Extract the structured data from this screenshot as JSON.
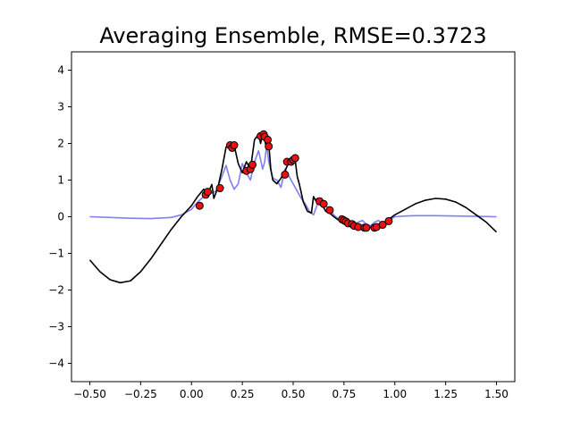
{
  "chart_data": {
    "type": "line",
    "title": "Averaging Ensemble, RMSE=0.3723",
    "xlabel": "",
    "ylabel": "",
    "xlim": [
      -0.59,
      1.59
    ],
    "ylim": [
      -4.5,
      4.5
    ],
    "x_ticks": [
      -0.5,
      -0.25,
      0.0,
      0.25,
      0.5,
      0.75,
      1.0,
      1.25,
      1.5
    ],
    "x_tick_labels": [
      "−0.50",
      "−0.25",
      "0.00",
      "0.25",
      "0.50",
      "0.75",
      "1.00",
      "1.25",
      "1.50"
    ],
    "y_ticks": [
      -4,
      -3,
      -2,
      -1,
      0,
      1,
      2,
      3,
      4
    ],
    "y_tick_labels": [
      "−4",
      "−3",
      "−2",
      "−1",
      "0",
      "1",
      "2",
      "3",
      "4"
    ],
    "grid": false,
    "legend": "none",
    "series": [
      {
        "role": "true-function",
        "color": "#8080f0",
        "style": "line",
        "x": [
          -0.5,
          -0.4,
          -0.3,
          -0.2,
          -0.1,
          -0.05,
          0.0,
          0.03,
          0.06,
          0.09,
          0.12,
          0.15,
          0.17,
          0.19,
          0.21,
          0.23,
          0.25,
          0.27,
          0.29,
          0.31,
          0.33,
          0.35,
          0.36,
          0.37,
          0.38,
          0.4,
          0.42,
          0.44,
          0.46,
          0.48,
          0.5,
          0.52,
          0.54,
          0.56,
          0.58,
          0.6,
          0.62,
          0.64,
          0.66,
          0.68,
          0.7,
          0.72,
          0.74,
          0.76,
          0.78,
          0.8,
          0.82,
          0.84,
          0.86,
          0.88,
          0.9,
          0.92,
          0.94,
          0.96,
          0.98,
          1.0,
          1.05,
          1.1,
          1.2,
          1.3,
          1.4,
          1.5
        ],
        "y": [
          0.0,
          -0.02,
          -0.04,
          -0.05,
          -0.02,
          0.05,
          0.2,
          0.4,
          0.55,
          0.62,
          0.7,
          1.1,
          1.4,
          1.0,
          0.75,
          0.9,
          1.45,
          1.2,
          1.0,
          1.5,
          1.8,
          1.3,
          1.5,
          1.95,
          1.5,
          1.05,
          1.0,
          0.8,
          1.3,
          1.1,
          0.9,
          0.7,
          0.5,
          0.35,
          0.15,
          0.05,
          0.35,
          0.5,
          0.3,
          0.2,
          0.05,
          -0.05,
          -0.1,
          -0.12,
          -0.14,
          -0.2,
          -0.15,
          -0.1,
          -0.2,
          -0.25,
          -0.15,
          -0.1,
          -0.2,
          -0.12,
          -0.08,
          0.0,
          0.02,
          0.03,
          0.03,
          0.02,
          0.01,
          0.0
        ]
      },
      {
        "role": "ensemble-prediction",
        "color": "#000000",
        "style": "line",
        "x": [
          -0.5,
          -0.45,
          -0.4,
          -0.35,
          -0.3,
          -0.25,
          -0.2,
          -0.15,
          -0.1,
          -0.05,
          0.0,
          0.03,
          0.06,
          0.08,
          0.1,
          0.11,
          0.12,
          0.13,
          0.15,
          0.17,
          0.19,
          0.21,
          0.23,
          0.25,
          0.27,
          0.29,
          0.31,
          0.33,
          0.34,
          0.35,
          0.36,
          0.37,
          0.38,
          0.39,
          0.4,
          0.42,
          0.44,
          0.46,
          0.48,
          0.5,
          0.51,
          0.52,
          0.53,
          0.55,
          0.57,
          0.59,
          0.6,
          0.61,
          0.62,
          0.64,
          0.66,
          0.68,
          0.7,
          0.72,
          0.74,
          0.76,
          0.78,
          0.8,
          0.82,
          0.85,
          0.88,
          0.91,
          0.95,
          1.0,
          1.05,
          1.1,
          1.15,
          1.2,
          1.25,
          1.3,
          1.35,
          1.4,
          1.45,
          1.5
        ],
        "y": [
          -1.18,
          -1.5,
          -1.72,
          -1.8,
          -1.75,
          -1.5,
          -1.15,
          -0.75,
          -0.35,
          0.0,
          0.3,
          0.55,
          0.75,
          0.62,
          0.88,
          0.5,
          0.65,
          0.8,
          1.3,
          1.9,
          2.0,
          1.95,
          1.45,
          1.2,
          1.5,
          1.3,
          2.1,
          2.25,
          2.0,
          2.3,
          2.1,
          1.85,
          2.0,
          1.3,
          1.0,
          0.9,
          1.05,
          1.25,
          1.5,
          1.6,
          1.55,
          1.1,
          0.9,
          0.4,
          0.15,
          0.1,
          0.55,
          0.45,
          0.5,
          0.35,
          0.15,
          0.1,
          0.0,
          -0.08,
          -0.1,
          -0.15,
          -0.22,
          -0.25,
          -0.28,
          -0.3,
          -0.29,
          -0.25,
          -0.15,
          0.05,
          0.2,
          0.35,
          0.45,
          0.5,
          0.48,
          0.4,
          0.25,
          0.05,
          -0.15,
          -0.42
        ]
      },
      {
        "role": "training-points",
        "color": "#ee1111",
        "style": "scatter",
        "x": [
          0.04,
          0.07,
          0.08,
          0.14,
          0.19,
          0.2,
          0.21,
          0.27,
          0.29,
          0.3,
          0.34,
          0.355,
          0.36,
          0.375,
          0.38,
          0.46,
          0.47,
          0.49,
          0.5,
          0.51,
          0.63,
          0.65,
          0.68,
          0.74,
          0.75,
          0.76,
          0.77,
          0.79,
          0.8,
          0.82,
          0.85,
          0.86,
          0.9,
          0.91,
          0.94,
          0.97
        ],
        "y": [
          0.3,
          0.6,
          0.68,
          0.78,
          1.95,
          1.88,
          1.95,
          1.25,
          1.3,
          1.42,
          2.2,
          2.25,
          2.18,
          2.1,
          1.92,
          1.15,
          1.5,
          1.5,
          1.55,
          1.6,
          0.42,
          0.35,
          0.18,
          -0.07,
          -0.1,
          -0.13,
          -0.18,
          -0.2,
          -0.25,
          -0.28,
          -0.3,
          -0.3,
          -0.3,
          -0.28,
          -0.22,
          -0.12
        ]
      }
    ]
  }
}
